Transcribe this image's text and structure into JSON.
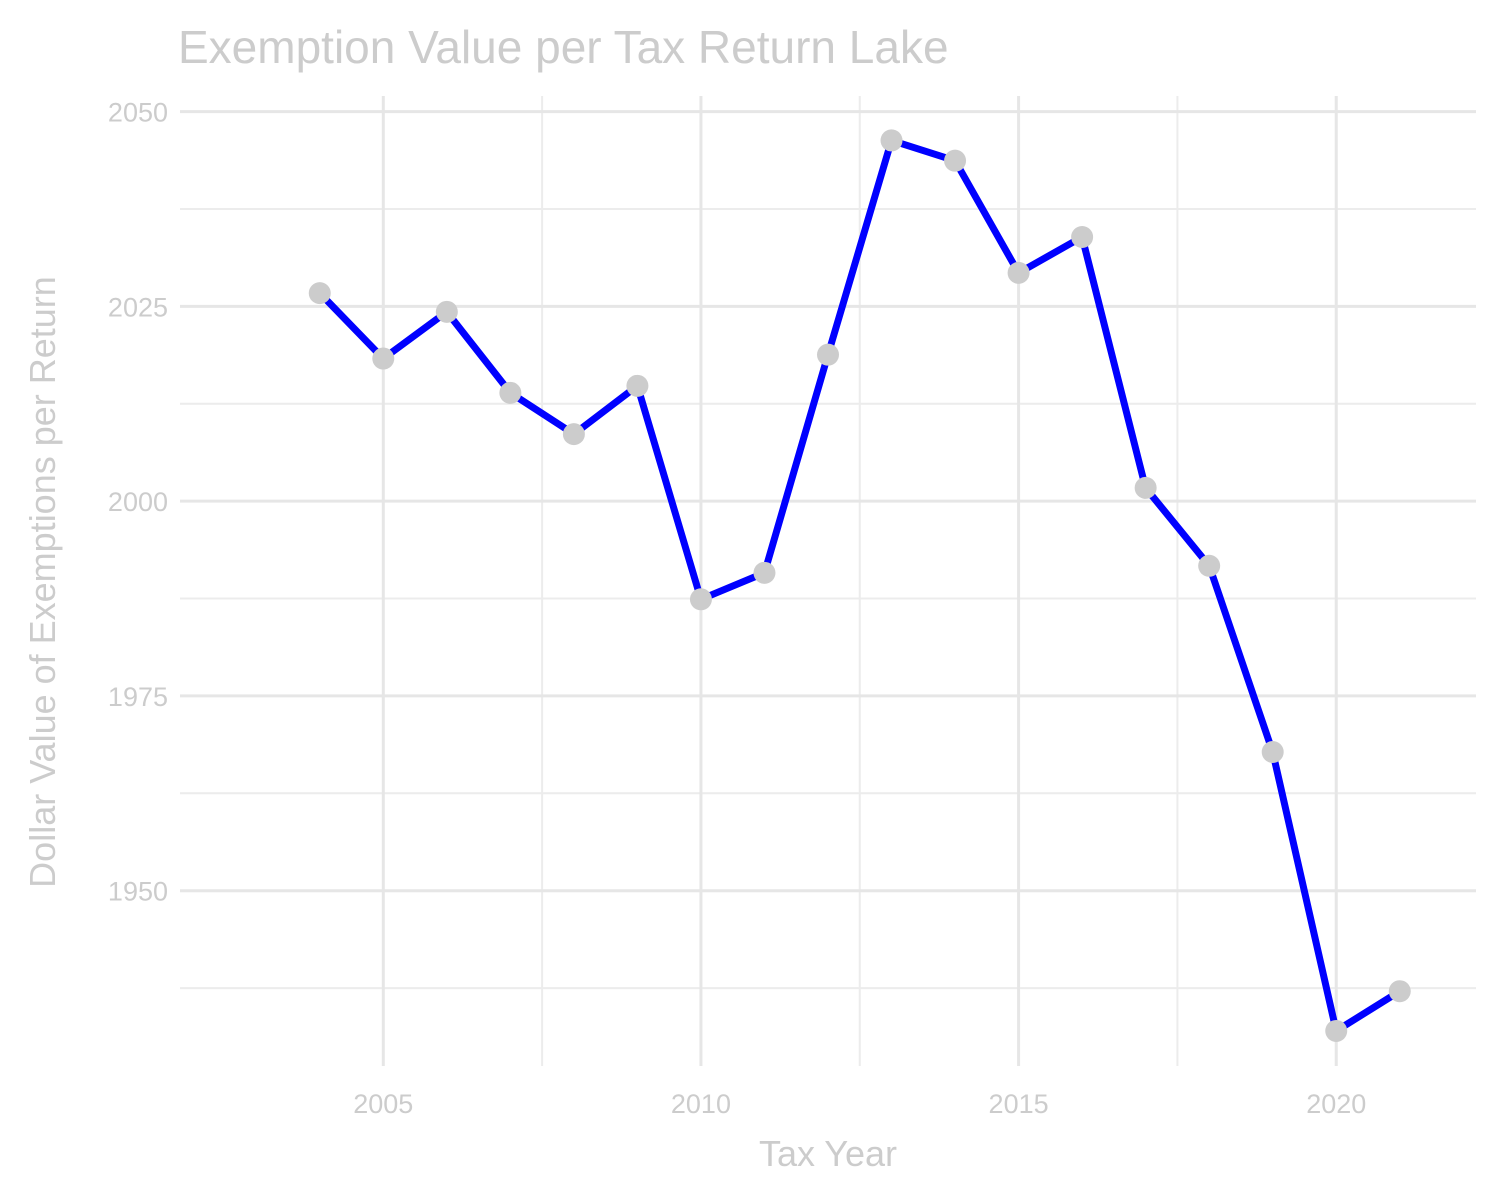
{
  "chart_data": {
    "type": "line",
    "title": "Exemption Value per Tax Return Lake",
    "xlabel": "Tax Year",
    "ylabel": "Dollar Value of Exemptions per Return",
    "x": [
      2004,
      2005,
      2006,
      2007,
      2008,
      2009,
      2010,
      2011,
      2012,
      2013,
      2014,
      2015,
      2016,
      2017,
      2018,
      2019,
      2020,
      2021
    ],
    "series": [
      {
        "values": [
          2026.7,
          2018.3,
          2024.3,
          2013.9,
          2008.6,
          2014.8,
          1987.4,
          1990.8,
          2018.8,
          2046.3,
          2043.7,
          2029.3,
          2033.9,
          2001.7,
          1991.7,
          1967.8,
          1932.0,
          1937.1
        ],
        "line_color": "#0000ff",
        "marker_color": "#cccccc"
      }
    ],
    "xlim": [
      2001.8,
      2022.2
    ],
    "ylim": [
      1927.5,
      2052.0
    ],
    "x_ticks": [
      "2005",
      "2010",
      "2015",
      "2020"
    ],
    "y_ticks": [
      "1950",
      "1975",
      "2000",
      "2025",
      "2050"
    ],
    "grid": true,
    "legend": "none"
  }
}
